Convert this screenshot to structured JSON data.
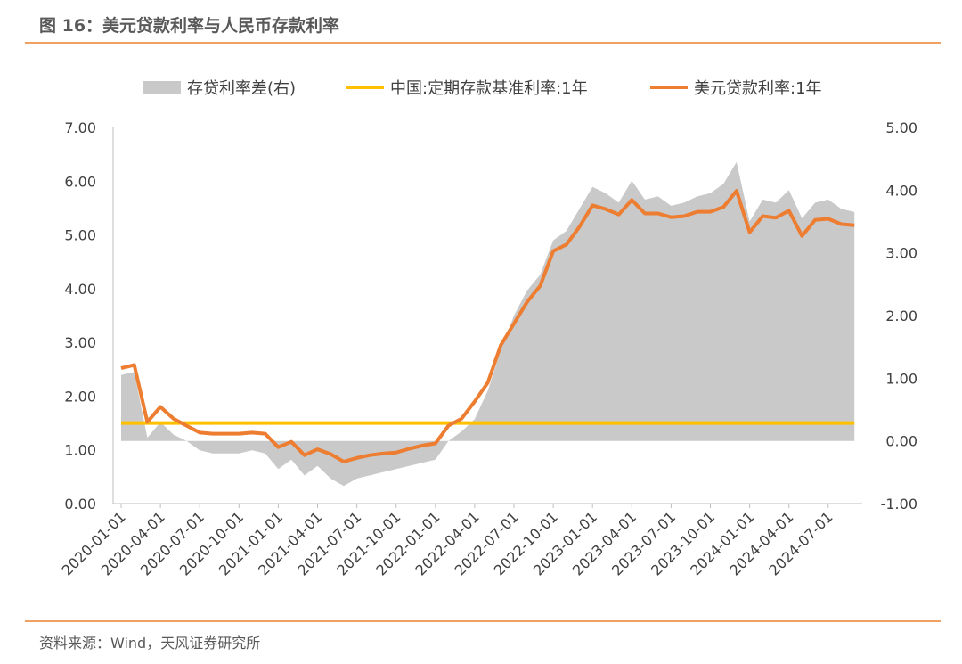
{
  "figure": {
    "title": "图 16：美元贷款利率与人民币存款利率",
    "source": "资料来源：Wind，天风证券研究所"
  },
  "colors": {
    "spread": "#c9c9c9",
    "cny_deposit": "#ffc000",
    "usd_loan": "#ed7d31",
    "rule": "#f0a060"
  },
  "chart_data": {
    "type": "line",
    "legend": [
      "存贷利率差(右)",
      "中国:定期存款基准利率:1年",
      "美元贷款利率:1年"
    ],
    "legend_position": "top",
    "grid": false,
    "y_left": {
      "ticks": [
        "0.00",
        "1.00",
        "2.00",
        "3.00",
        "4.00",
        "5.00",
        "6.00",
        "7.00"
      ],
      "range": [
        0,
        7
      ]
    },
    "y_right": {
      "ticks": [
        "-1.00",
        "0.00",
        "1.00",
        "2.00",
        "3.00",
        "4.00",
        "5.00"
      ],
      "range": [
        -1,
        5
      ]
    },
    "x_ticks": [
      "2020-01-01",
      "2020-04-01",
      "2020-07-01",
      "2020-10-01",
      "2021-01-01",
      "2021-04-01",
      "2021-07-01",
      "2021-10-01",
      "2022-01-01",
      "2022-04-01",
      "2022-07-01",
      "2022-10-01",
      "2023-01-01",
      "2023-04-01",
      "2023-07-01",
      "2023-10-01",
      "2024-01-01",
      "2024-04-01",
      "2024-07-01"
    ],
    "x": [
      "2020-01",
      "2020-02",
      "2020-03",
      "2020-04",
      "2020-05",
      "2020-06",
      "2020-07",
      "2020-08",
      "2020-09",
      "2020-10",
      "2020-11",
      "2020-12",
      "2021-01",
      "2021-02",
      "2021-03",
      "2021-04",
      "2021-05",
      "2021-06",
      "2021-07",
      "2021-08",
      "2021-09",
      "2021-10",
      "2021-11",
      "2021-12",
      "2022-01",
      "2022-02",
      "2022-03",
      "2022-04",
      "2022-05",
      "2022-06",
      "2022-07",
      "2022-08",
      "2022-09",
      "2022-10",
      "2022-11",
      "2022-12",
      "2023-01",
      "2023-02",
      "2023-03",
      "2023-04",
      "2023-05",
      "2023-06",
      "2023-07",
      "2023-08",
      "2023-09",
      "2023-10",
      "2023-11",
      "2023-12",
      "2024-01",
      "2024-02",
      "2024-03",
      "2024-04",
      "2024-05",
      "2024-06",
      "2024-07",
      "2024-08",
      "2024-09"
    ],
    "series": [
      {
        "name": "存贷利率差(右)",
        "kind": "area",
        "axis": "right",
        "values": [
          1.05,
          1.1,
          0.05,
          0.3,
          0.1,
          0.0,
          -0.15,
          -0.2,
          -0.2,
          -0.2,
          -0.15,
          -0.2,
          -0.45,
          -0.3,
          -0.55,
          -0.4,
          -0.6,
          -0.72,
          -0.6,
          -0.55,
          -0.5,
          -0.45,
          -0.4,
          -0.35,
          -0.3,
          0.0,
          0.15,
          0.35,
          0.8,
          1.45,
          2.0,
          2.4,
          2.65,
          3.2,
          3.35,
          3.7,
          4.05,
          3.95,
          3.8,
          4.15,
          3.85,
          3.9,
          3.75,
          3.8,
          3.9,
          3.95,
          4.1,
          4.45,
          3.5,
          3.85,
          3.8,
          4.0,
          3.55,
          3.8,
          3.85,
          3.7,
          3.65
        ]
      },
      {
        "name": "中国:定期存款基准利率:1年",
        "kind": "line",
        "axis": "left",
        "values": [
          1.5,
          1.5,
          1.5,
          1.5,
          1.5,
          1.5,
          1.5,
          1.5,
          1.5,
          1.5,
          1.5,
          1.5,
          1.5,
          1.5,
          1.5,
          1.5,
          1.5,
          1.5,
          1.5,
          1.5,
          1.5,
          1.5,
          1.5,
          1.5,
          1.5,
          1.5,
          1.5,
          1.5,
          1.5,
          1.5,
          1.5,
          1.5,
          1.5,
          1.5,
          1.5,
          1.5,
          1.5,
          1.5,
          1.5,
          1.5,
          1.5,
          1.5,
          1.5,
          1.5,
          1.5,
          1.5,
          1.5,
          1.5,
          1.5,
          1.5,
          1.5,
          1.5,
          1.5,
          1.5,
          1.5,
          1.5,
          1.5
        ]
      },
      {
        "name": "美元贷款利率:1年",
        "kind": "line",
        "axis": "left",
        "values": [
          2.52,
          2.58,
          1.52,
          1.8,
          1.58,
          1.45,
          1.32,
          1.3,
          1.3,
          1.3,
          1.32,
          1.3,
          1.05,
          1.15,
          0.9,
          1.01,
          0.92,
          0.78,
          0.85,
          0.9,
          0.93,
          0.95,
          1.02,
          1.08,
          1.12,
          1.45,
          1.58,
          1.9,
          2.25,
          2.95,
          3.35,
          3.75,
          4.05,
          4.7,
          4.82,
          5.15,
          5.55,
          5.48,
          5.38,
          5.65,
          5.4,
          5.4,
          5.33,
          5.35,
          5.43,
          5.43,
          5.52,
          5.82,
          5.05,
          5.35,
          5.32,
          5.45,
          4.98,
          5.28,
          5.3,
          5.2,
          5.18
        ]
      }
    ]
  }
}
